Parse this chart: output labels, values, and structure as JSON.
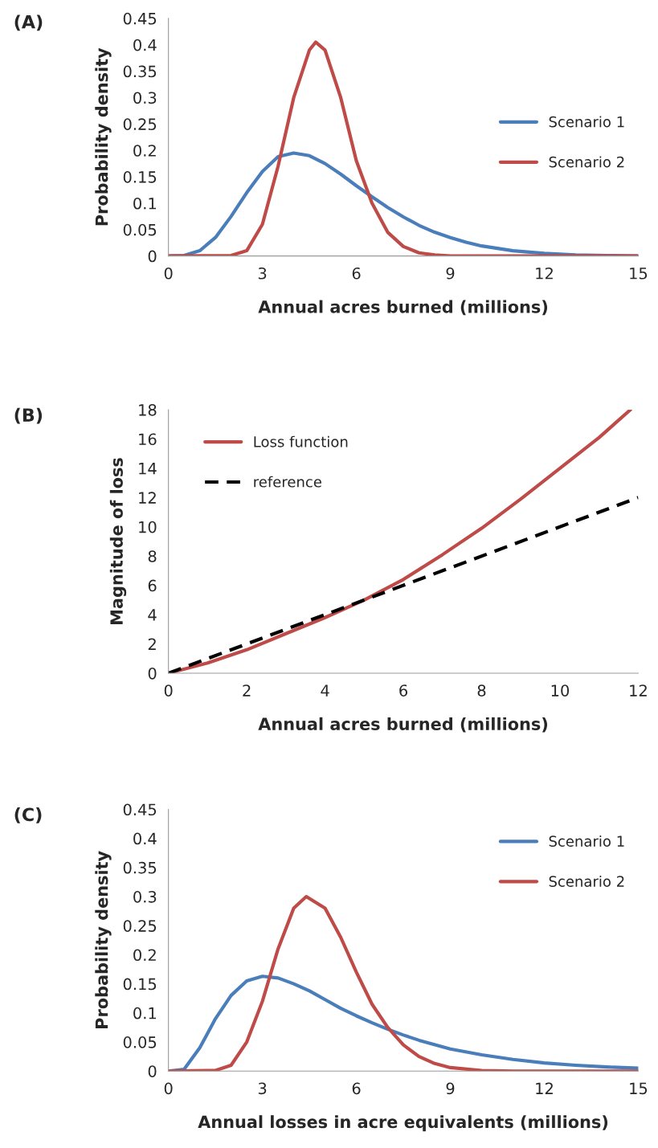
{
  "chart_data": [
    {
      "type": "line",
      "title": "(A)",
      "xlabel": "Annual acres burned (millions)",
      "ylabel": "Probability density",
      "xlim": [
        0,
        15
      ],
      "xticks": [
        0,
        3,
        6,
        9,
        12,
        15
      ],
      "ylim": [
        0,
        0.45
      ],
      "yticks": [
        0,
        0.05,
        0.1,
        0.15,
        0.2,
        0.25,
        0.3,
        0.35,
        0.4,
        0.45
      ],
      "grid": false,
      "legend": "right",
      "series": [
        {
          "name": "Scenario 1",
          "color": "#4a7ebb",
          "x": [
            0,
            0.5,
            1,
            1.5,
            2,
            2.5,
            3,
            3.5,
            4,
            4.5,
            5,
            5.5,
            6,
            6.5,
            7,
            7.5,
            8,
            8.5,
            9,
            9.5,
            10,
            11,
            12,
            13,
            14,
            15
          ],
          "values": [
            0,
            0.001,
            0.01,
            0.035,
            0.075,
            0.12,
            0.16,
            0.188,
            0.195,
            0.19,
            0.175,
            0.155,
            0.133,
            0.112,
            0.092,
            0.074,
            0.058,
            0.045,
            0.035,
            0.026,
            0.019,
            0.01,
            0.005,
            0.002,
            0.001,
            0
          ]
        },
        {
          "name": "Scenario 2",
          "color": "#be4b48",
          "x": [
            0,
            2,
            2.5,
            3,
            3.5,
            4,
            4.5,
            4.7,
            5,
            5.5,
            6,
            6.5,
            7,
            7.5,
            8,
            8.5,
            9,
            15
          ],
          "values": [
            0,
            0.001,
            0.01,
            0.06,
            0.17,
            0.3,
            0.39,
            0.405,
            0.39,
            0.3,
            0.18,
            0.1,
            0.045,
            0.018,
            0.006,
            0.002,
            0,
            0
          ]
        }
      ]
    },
    {
      "type": "line",
      "title": "(B)",
      "xlabel": "Annual acres burned (millions)",
      "ylabel": "Magnitude of loss",
      "xlim": [
        0,
        12
      ],
      "xticks": [
        0,
        2,
        4,
        6,
        8,
        10,
        12
      ],
      "ylim": [
        0,
        18
      ],
      "yticks": [
        0,
        2,
        4,
        6,
        8,
        10,
        12,
        14,
        16,
        18
      ],
      "grid": false,
      "legend": "top left",
      "series": [
        {
          "name": "Loss function",
          "color": "#be4b48",
          "line_style": "solid",
          "x": [
            0,
            1,
            2,
            3,
            4,
            5,
            6,
            7,
            8,
            9,
            10,
            11,
            11.8
          ],
          "values": [
            0,
            0.7,
            1.6,
            2.7,
            3.8,
            5,
            6.4,
            8.1,
            9.9,
            11.9,
            14,
            16.1,
            18
          ]
        },
        {
          "name": "reference",
          "color": "#000000",
          "line_style": "dashed",
          "x": [
            0,
            12
          ],
          "values": [
            0,
            12
          ]
        }
      ]
    },
    {
      "type": "line",
      "title": "(C)",
      "xlabel": "Annual losses in acre equivalents (millions)",
      "ylabel": "Probability density",
      "xlim": [
        0,
        15
      ],
      "xticks": [
        0,
        3,
        6,
        9,
        12,
        15
      ],
      "ylim": [
        0,
        0.45
      ],
      "yticks": [
        0,
        0.05,
        0.1,
        0.15,
        0.2,
        0.25,
        0.3,
        0.35,
        0.4,
        0.45
      ],
      "grid": false,
      "legend": "top right",
      "series": [
        {
          "name": "Scenario 1",
          "color": "#4a7ebb",
          "x": [
            0,
            0.5,
            1,
            1.5,
            2,
            2.5,
            3,
            3.5,
            4,
            4.5,
            5,
            5.5,
            6,
            6.5,
            7,
            7.5,
            8,
            9,
            10,
            11,
            12,
            13,
            14,
            15
          ],
          "values": [
            0,
            0.003,
            0.04,
            0.09,
            0.13,
            0.155,
            0.163,
            0.16,
            0.15,
            0.138,
            0.123,
            0.108,
            0.095,
            0.083,
            0.072,
            0.062,
            0.053,
            0.038,
            0.028,
            0.02,
            0.014,
            0.01,
            0.007,
            0.005
          ]
        },
        {
          "name": "Scenario 2",
          "color": "#be4b48",
          "x": [
            0,
            1.5,
            2,
            2.5,
            3,
            3.5,
            4,
            4.4,
            5,
            5.5,
            6,
            6.5,
            7,
            7.5,
            8,
            8.5,
            9,
            10,
            11,
            15
          ],
          "values": [
            0,
            0.001,
            0.01,
            0.05,
            0.12,
            0.21,
            0.28,
            0.3,
            0.28,
            0.23,
            0.17,
            0.115,
            0.075,
            0.045,
            0.025,
            0.013,
            0.006,
            0.001,
            0,
            0
          ]
        }
      ]
    }
  ]
}
